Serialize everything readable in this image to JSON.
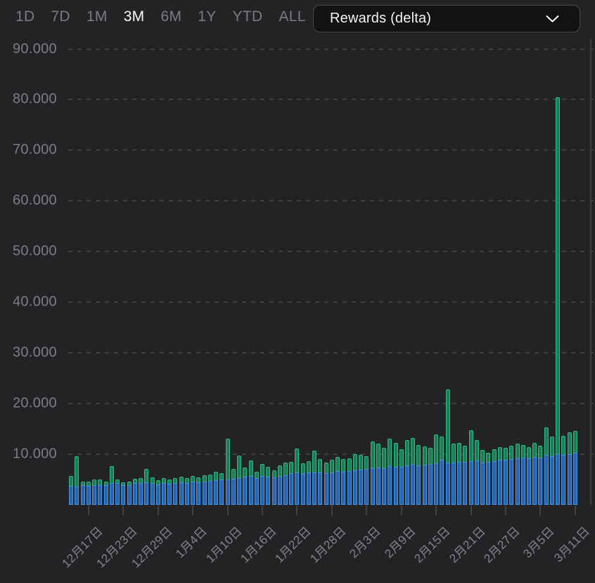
{
  "controls": {
    "ranges": [
      {
        "label": "1D",
        "active": false
      },
      {
        "label": "7D",
        "active": false
      },
      {
        "label": "1M",
        "active": false
      },
      {
        "label": "3M",
        "active": true
      },
      {
        "label": "6M",
        "active": false
      },
      {
        "label": "1Y",
        "active": false
      },
      {
        "label": "YTD",
        "active": false
      },
      {
        "label": "ALL",
        "active": false
      }
    ],
    "metric_dropdown": {
      "value": "Rewards (delta)"
    }
  },
  "colors": {
    "background": "#232326",
    "green_stroke": "#2ebd85",
    "green_fill": "#1c7e58",
    "blue_stroke": "#3f93e8",
    "blue_fill": "#2a64ab",
    "grid": "#3d3d42",
    "axis_text": "#7d7d83",
    "active_text": "#fafafa"
  },
  "chart_data": {
    "type": "bar",
    "stacked": true,
    "title": "",
    "xlabel": "",
    "ylabel": "",
    "grid": "horizontal-dashed",
    "legend": "none",
    "y_axis": {
      "min": 0,
      "max": 90000,
      "step": 10000,
      "labels": [
        "10.000",
        "20.000",
        "30.000",
        "40.000",
        "50.000",
        "60.000",
        "70.000",
        "80.000",
        "90.000"
      ]
    },
    "x_axis": {
      "ticks": [
        {
          "label": "12月17日",
          "index": 3
        },
        {
          "label": "12月23日",
          "index": 9
        },
        {
          "label": "12月29日",
          "index": 15
        },
        {
          "label": "1月4日",
          "index": 21
        },
        {
          "label": "1月10日",
          "index": 27
        },
        {
          "label": "1月16日",
          "index": 33
        },
        {
          "label": "1月22日",
          "index": 39
        },
        {
          "label": "1月28日",
          "index": 45
        },
        {
          "label": "2月3日",
          "index": 51
        },
        {
          "label": "2月9日",
          "index": 57
        },
        {
          "label": "2月15日",
          "index": 63
        },
        {
          "label": "2月21日",
          "index": 69
        },
        {
          "label": "2月27日",
          "index": 75
        },
        {
          "label": "3月5日",
          "index": 81
        },
        {
          "label": "3月11日",
          "index": 87
        }
      ]
    },
    "series": [
      {
        "name": "blue-series-bottom",
        "stroke": "#3f93e8",
        "fill": "#2a64ab",
        "values": [
          3700,
          3600,
          3800,
          3700,
          3800,
          3900,
          3900,
          4200,
          4200,
          3800,
          3900,
          4200,
          4300,
          4400,
          4200,
          4000,
          4200,
          4100,
          4300,
          4400,
          4300,
          4500,
          4400,
          4600,
          4700,
          4800,
          4900,
          5000,
          5100,
          5200,
          5500,
          5600,
          5300,
          5600,
          5500,
          5400,
          5700,
          5800,
          6200,
          6300,
          6100,
          6300,
          6400,
          6400,
          6200,
          6400,
          6600,
          6500,
          6600,
          6800,
          6900,
          7000,
          7200,
          7300,
          7200,
          7600,
          7500,
          7400,
          7800,
          8000,
          7800,
          7900,
          8000,
          8200,
          8900,
          8300,
          8300,
          8500,
          8400,
          8600,
          8700,
          8300,
          8400,
          8600,
          8800,
          8900,
          9000,
          9200,
          9300,
          9200,
          9400,
          9300,
          9800,
          9600,
          9900,
          9800,
          10000,
          10200
        ]
      },
      {
        "name": "green-series-top",
        "stroke": "#2ebd85",
        "fill": "#1c7e58",
        "values": [
          1900,
          5900,
          800,
          900,
          1200,
          1100,
          700,
          3400,
          700,
          600,
          700,
          900,
          1000,
          2600,
          1200,
          800,
          1000,
          900,
          1000,
          1100,
          900,
          1100,
          1000,
          1200,
          1300,
          1700,
          1300,
          8000,
          1900,
          4500,
          1800,
          3100,
          1200,
          2400,
          1900,
          1400,
          2000,
          2500,
          2300,
          4800,
          2100,
          2300,
          4300,
          2600,
          2100,
          2400,
          2800,
          2500,
          2600,
          3200,
          2900,
          2600,
          5200,
          4700,
          4000,
          5400,
          4700,
          3600,
          5000,
          5200,
          4000,
          3600,
          3200,
          5600,
          4600,
          14500,
          3700,
          3700,
          3200,
          6100,
          4100,
          2500,
          1800,
          2400,
          2600,
          2300,
          2600,
          2800,
          2500,
          2200,
          2800,
          2300,
          5400,
          3800,
          70600,
          3800,
          4300,
          4400
        ]
      }
    ]
  }
}
